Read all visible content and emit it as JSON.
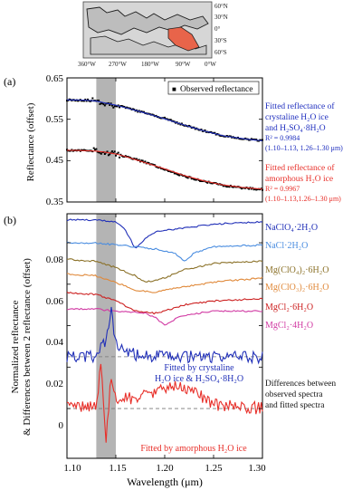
{
  "figure": {
    "map": {
      "lat_ticks": [
        "60°N",
        "30°N",
        "0°",
        "30°S",
        "60°S"
      ],
      "lon_ticks": [
        "360°W",
        "270°W",
        "180°W",
        "90°W",
        "0°W"
      ]
    }
  },
  "chart_data": [
    {
      "type": "line",
      "panel_label": "(a)",
      "ylabel": "Reflectance (offset)",
      "xlim": [
        1.1,
        1.3
      ],
      "ylim": [
        0.35,
        0.65
      ],
      "yticks": [
        "0.35",
        "0.45",
        "0.55",
        "0.65"
      ],
      "shaded_band": [
        1.13,
        1.15
      ],
      "legend": {
        "marker": "■",
        "label": "Observed reflectance",
        "placement": "top-right"
      },
      "series": [
        {
          "name": "Observed reflectance",
          "style": "points",
          "color": "#000000",
          "x": [
            1.1,
            1.12,
            1.13,
            1.14,
            1.15,
            1.16,
            1.18,
            1.2,
            1.22,
            1.24,
            1.26,
            1.28,
            1.3
          ],
          "y": [
            0.597,
            0.596,
            0.594,
            0.588,
            0.584,
            0.578,
            0.565,
            0.552,
            0.536,
            0.522,
            0.51,
            0.503,
            0.498
          ]
        },
        {
          "name": "Fitted reflectance of crystaline H2O ice and H2SO4·8H2O",
          "color": "#1f2fbf",
          "x": [
            1.1,
            1.12,
            1.13,
            1.14,
            1.15,
            1.16,
            1.18,
            1.2,
            1.22,
            1.24,
            1.26,
            1.28,
            1.3
          ],
          "y": [
            0.597,
            0.596,
            0.594,
            0.589,
            0.584,
            0.578,
            0.565,
            0.551,
            0.536,
            0.522,
            0.51,
            0.503,
            0.498
          ]
        },
        {
          "name": "Observed reflectance (lower)",
          "style": "points",
          "color": "#000000",
          "x": [
            1.1,
            1.12,
            1.13,
            1.14,
            1.15,
            1.16,
            1.18,
            1.2,
            1.22,
            1.24,
            1.26,
            1.28,
            1.3
          ],
          "y": [
            0.475,
            0.474,
            0.473,
            0.469,
            0.465,
            0.46,
            0.446,
            0.428,
            0.412,
            0.4,
            0.39,
            0.384,
            0.38
          ]
        },
        {
          "name": "Fitted reflectance of amorphous H2O ice",
          "color": "#e8302a",
          "x": [
            1.1,
            1.12,
            1.13,
            1.14,
            1.15,
            1.16,
            1.18,
            1.2,
            1.22,
            1.24,
            1.26,
            1.28,
            1.3
          ],
          "y": [
            0.475,
            0.474,
            0.473,
            0.47,
            0.466,
            0.46,
            0.445,
            0.43,
            0.414,
            0.401,
            0.391,
            0.385,
            0.381
          ]
        }
      ],
      "annotations": [
        {
          "color": "#1f2fbf",
          "lines": [
            "Fitted reflectance of",
            "crystaline H₂O ice",
            "and H₂SO₄·8H₂O",
            "R² = 0.9984",
            "(1.10–1.13, 1.26–1.30 μm)"
          ]
        },
        {
          "color": "#e8302a",
          "lines": [
            "Fitted reflectance of",
            "amorphous H₂O ice",
            "R² = 0.9967",
            "(1.10–1.13,1.26–1.30 μm)"
          ]
        }
      ]
    },
    {
      "type": "line",
      "panel_label": "(b)",
      "xlabel": "Wavelength (μm)",
      "ylabel_lines": [
        "Normalized reflectance",
        "& Differences between 2 reflectance (offset)"
      ],
      "xlim": [
        1.1,
        1.3
      ],
      "ylim": [
        -0.024,
        0.094
      ],
      "xticks": [
        "1.10",
        "1.15",
        "1.20",
        "1.25",
        "1.30"
      ],
      "yticks": [
        "0",
        "0.02",
        "0.04",
        "0.06",
        "0.08"
      ],
      "shaded_band": [
        1.13,
        1.15
      ],
      "series": [
        {
          "name": "NaClO₄·2H₂O",
          "color": "#2130b8",
          "x": [
            1.1,
            1.13,
            1.15,
            1.16,
            1.17,
            1.18,
            1.19,
            1.2,
            1.22,
            1.25,
            1.3
          ],
          "y": [
            0.091,
            0.091,
            0.09,
            0.086,
            0.077,
            0.082,
            0.085,
            0.086,
            0.087,
            0.089,
            0.09
          ]
        },
        {
          "name": "NaCl·2H₂O",
          "color": "#4a8de0",
          "x": [
            1.1,
            1.13,
            1.15,
            1.17,
            1.19,
            1.21,
            1.22,
            1.23,
            1.25,
            1.3
          ],
          "y": [
            0.08,
            0.08,
            0.079,
            0.078,
            0.077,
            0.075,
            0.071,
            0.075,
            0.078,
            0.079
          ]
        },
        {
          "name": "Mg(ClO₄)₂·6H₂O",
          "color": "#8b7128",
          "x": [
            1.1,
            1.13,
            1.15,
            1.17,
            1.18,
            1.2,
            1.22,
            1.25,
            1.3
          ],
          "y": [
            0.072,
            0.071,
            0.068,
            0.064,
            0.061,
            0.063,
            0.067,
            0.07,
            0.071
          ]
        },
        {
          "name": "Mg(ClO₃)₂·6H₂O",
          "color": "#e0893a",
          "x": [
            1.1,
            1.13,
            1.15,
            1.17,
            1.19,
            1.21,
            1.25,
            1.3
          ],
          "y": [
            0.065,
            0.064,
            0.061,
            0.057,
            0.056,
            0.058,
            0.061,
            0.063
          ]
        },
        {
          "name": "MgCl₂·6H₂O",
          "color": "#cc1f1f",
          "x": [
            1.1,
            1.13,
            1.15,
            1.17,
            1.19,
            1.2,
            1.22,
            1.25,
            1.3
          ],
          "y": [
            0.056,
            0.055,
            0.052,
            0.047,
            0.046,
            0.047,
            0.05,
            0.052,
            0.053
          ]
        },
        {
          "name": "MgCl₂·4H₂O",
          "color": "#d13aa3",
          "x": [
            1.1,
            1.13,
            1.15,
            1.18,
            1.19,
            1.2,
            1.21,
            1.22,
            1.25,
            1.3
          ],
          "y": [
            0.048,
            0.048,
            0.047,
            0.046,
            0.044,
            0.04,
            0.043,
            0.045,
            0.047,
            0.047
          ]
        },
        {
          "name": "Fitted by crystaline H₂O ice & H₂SO₄·8H₂O",
          "color": "#2130b8",
          "baseline": 0.025,
          "x": [
            1.1,
            1.13,
            1.14,
            1.145,
            1.15,
            1.17,
            1.2,
            1.25,
            1.3
          ],
          "y": [
            0.025,
            0.025,
            0.033,
            0.048,
            0.03,
            0.026,
            0.025,
            0.025,
            0.025
          ]
        },
        {
          "name": "Fitted by amorphous H₂O ice",
          "color": "#e8302a",
          "baseline": 0.0,
          "x": [
            1.1,
            1.13,
            1.135,
            1.14,
            1.145,
            1.15,
            1.18,
            1.21,
            1.23,
            1.25,
            1.3
          ],
          "y": [
            0.0,
            0.002,
            0.021,
            -0.016,
            0.015,
            0.004,
            0.006,
            0.011,
            0.008,
            0.002,
            0.0
          ]
        }
      ],
      "label_texts": [
        "NaClO₄·2H₂O",
        "NaCl·2H₂O",
        "Mg(ClO₄)₂·6H₂O",
        "Mg(ClO₃)₂·6H₂O",
        "MgCl₂·6H₂O",
        "MgCl₂·4H₂O"
      ],
      "inner_labels": {
        "crystaline": [
          "Fitted by crystaline",
          "H₂O ice & H₂SO₄·8H₂O"
        ],
        "amorphous": "Fitted by amorphous H₂O ice"
      },
      "side_note": [
        "Differences between",
        "observed spectra",
        "and fitted spectra"
      ]
    }
  ]
}
